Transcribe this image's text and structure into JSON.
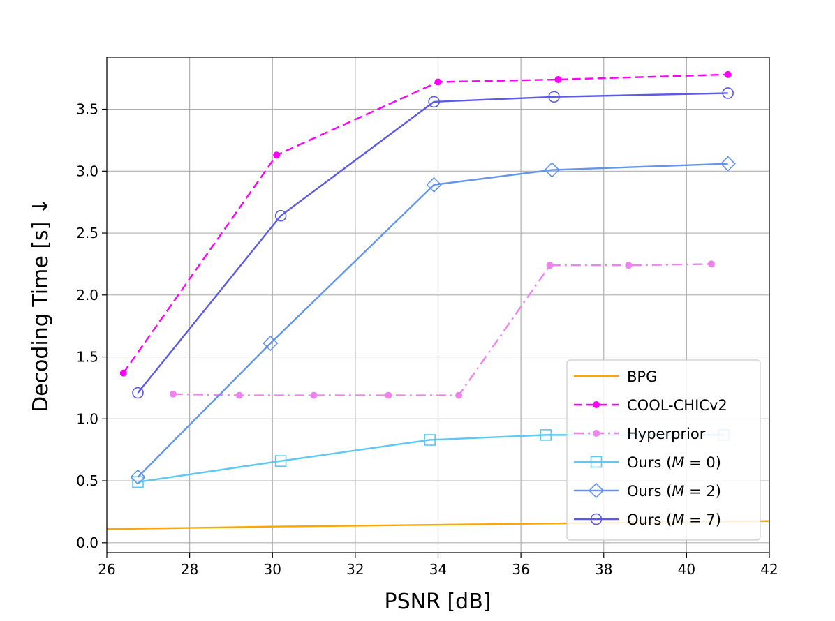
{
  "chart_data": {
    "type": "line",
    "xlabel": "PSNR [dB]",
    "ylabel": "Decoding Time [s]  ↓",
    "xlim": [
      26,
      42
    ],
    "ylim": [
      -0.08,
      3.92
    ],
    "xticks": [
      26,
      28,
      30,
      32,
      34,
      36,
      38,
      40,
      42
    ],
    "xtick_labels": [
      "26",
      "28",
      "30",
      "32",
      "34",
      "36",
      "38",
      "40",
      "42"
    ],
    "yticks": [
      0.0,
      0.5,
      1.0,
      1.5,
      2.0,
      2.5,
      3.0,
      3.5
    ],
    "ytick_labels": [
      "0.0",
      "0.5",
      "1.0",
      "1.5",
      "2.0",
      "2.5",
      "3.0",
      "3.5"
    ],
    "grid": true,
    "legend_position": "lower-right",
    "series": [
      {
        "name": "BPG",
        "color": "#FFA500",
        "dash": "solid",
        "marker": "none",
        "x": [
          26.0,
          30.0,
          34.0,
          38.0,
          42.0
        ],
        "y": [
          0.11,
          0.13,
          0.145,
          0.16,
          0.175
        ]
      },
      {
        "name": "COOL-CHICv2",
        "color": "#FF00FF",
        "dash": "dashed",
        "marker": "dot",
        "x": [
          26.4,
          30.1,
          34.0,
          36.9,
          41.0
        ],
        "y": [
          1.37,
          3.13,
          3.72,
          3.74,
          3.78
        ]
      },
      {
        "name": "Hyperprior",
        "color": "#EE82EE",
        "dash": "dashdot",
        "marker": "dot",
        "x": [
          27.6,
          29.2,
          31.0,
          32.8,
          34.5,
          36.7,
          38.6,
          40.6
        ],
        "y": [
          1.2,
          1.19,
          1.19,
          1.19,
          1.19,
          2.24,
          2.24,
          2.25
        ]
      },
      {
        "name": "Ours (M = 0)",
        "legend_prefix": "Ours (",
        "legend_var": "M",
        "legend_suffix": " = 0)",
        "color": "#5BC8F5",
        "dash": "solid",
        "marker": "square",
        "x": [
          26.75,
          30.2,
          33.8,
          36.6,
          40.9
        ],
        "y": [
          0.49,
          0.66,
          0.83,
          0.87,
          0.87
        ]
      },
      {
        "name": "Ours (M = 2)",
        "legend_prefix": "Ours (",
        "legend_var": "M",
        "legend_suffix": " = 2)",
        "color": "#6495ED",
        "dash": "solid",
        "marker": "diamond",
        "x": [
          26.75,
          29.95,
          33.9,
          36.75,
          41.0
        ],
        "y": [
          0.53,
          1.61,
          2.89,
          3.01,
          3.06
        ]
      },
      {
        "name": "Ours (M = 7)",
        "legend_prefix": "Ours (",
        "legend_var": "M",
        "legend_suffix": " = 7)",
        "color": "#5A5AE6",
        "dash": "solid",
        "marker": "circle",
        "x": [
          26.75,
          30.2,
          33.9,
          36.8,
          41.0
        ],
        "y": [
          1.21,
          2.64,
          3.56,
          3.6,
          3.63
        ]
      }
    ]
  }
}
